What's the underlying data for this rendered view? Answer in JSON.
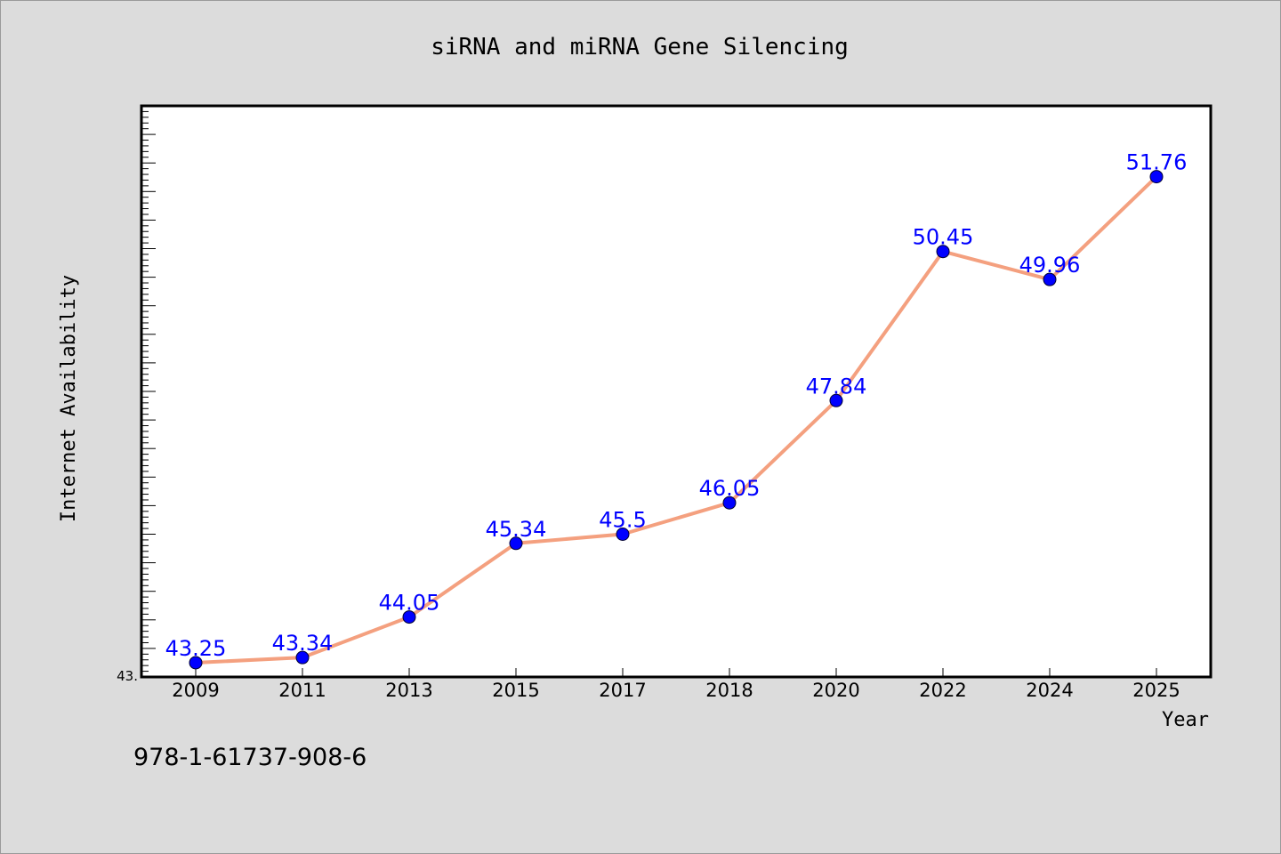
{
  "chart_data": {
    "type": "line",
    "title": "siRNA and miRNA Gene Silencing",
    "xlabel": "Year",
    "ylabel": "Internet Availability",
    "categories": [
      "2009",
      "2011",
      "2013",
      "2015",
      "2017",
      "2018",
      "2020",
      "2022",
      "2024",
      "2025"
    ],
    "series": [
      {
        "values": [
          43.25,
          43.34,
          44.05,
          45.34,
          45.5,
          46.05,
          47.84,
          50.45,
          49.96,
          51.76
        ],
        "labels": [
          "43.25",
          "43.34",
          "44.05",
          "45.34",
          "45.5",
          "46.05",
          "47.84",
          "50.45",
          "49.96",
          "51.76"
        ]
      }
    ],
    "ylim": [
      43.0,
      53.0
    ],
    "ymin_label": "43.",
    "grid": false,
    "colors": {
      "line": "#f4a07f",
      "marker": "#0000ff",
      "data_label": "#0000ff",
      "background": "#dcdcdc",
      "plot_bg": "#ffffff"
    }
  },
  "footer": {
    "isbn": "978-1-61737-908-6"
  }
}
